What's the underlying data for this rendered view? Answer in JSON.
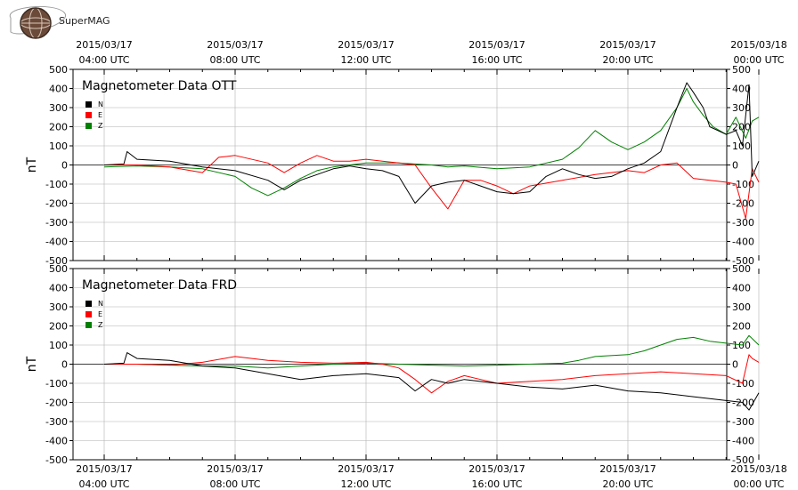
{
  "logo": {
    "text": "SuperMAG"
  },
  "colors": {
    "N": "#000000",
    "E": "#ff0000",
    "Z": "#008000",
    "grid": "#b0b0b0",
    "axis": "#000000"
  },
  "time_ticks": [
    {
      "date": "2015/03/17",
      "time": "04:00 UTC",
      "hour": 0
    },
    {
      "date": "2015/03/17",
      "time": "08:00 UTC",
      "hour": 4
    },
    {
      "date": "2015/03/17",
      "time": "12:00 UTC",
      "hour": 8
    },
    {
      "date": "2015/03/17",
      "time": "16:00 UTC",
      "hour": 12
    },
    {
      "date": "2015/03/17",
      "time": "20:00 UTC",
      "hour": 16
    },
    {
      "date": "2015/03/18",
      "time": "00:00 UTC",
      "hour": 20
    }
  ],
  "legend": [
    "N",
    "E",
    "Z"
  ],
  "chart_data": [
    {
      "type": "line",
      "title": "Magnetometer Data OTT",
      "ylabel": "nT",
      "xlabel": "",
      "xlim": [
        0,
        20
      ],
      "ylim": [
        -500,
        500
      ],
      "yticks": [
        -500,
        -400,
        -300,
        -200,
        -100,
        0,
        100,
        200,
        300,
        400,
        500
      ],
      "grid": true,
      "legend_position": "top-left",
      "series": [
        {
          "name": "N",
          "color": "#000000",
          "x": [
            0,
            0.6,
            0.7,
            1,
            2,
            3,
            4,
            5,
            5.5,
            6,
            6.5,
            7,
            7.5,
            8,
            8.5,
            9,
            9.5,
            10,
            10.5,
            11,
            11.5,
            12,
            12.5,
            13,
            13.5,
            14,
            14.5,
            15,
            15.5,
            16,
            16.5,
            17,
            17.5,
            17.8,
            18,
            18.3,
            18.5,
            19,
            19.3,
            19.5,
            19.7,
            19.8,
            20
          ],
          "y": [
            0,
            5,
            70,
            30,
            20,
            -10,
            -30,
            -80,
            -130,
            -80,
            -50,
            -20,
            -5,
            -20,
            -30,
            -60,
            -200,
            -110,
            -90,
            -80,
            -110,
            -140,
            -150,
            -140,
            -60,
            -20,
            -50,
            -70,
            -60,
            -20,
            10,
            70,
            300,
            430,
            380,
            300,
            200,
            160,
            180,
            100,
            420,
            -60,
            20
          ]
        },
        {
          "name": "E",
          "color": "#ff0000",
          "x": [
            0,
            1,
            2,
            3,
            3.5,
            4,
            5,
            5.5,
            6,
            6.5,
            7,
            7.5,
            8,
            8.5,
            9,
            9.5,
            10,
            10.5,
            11,
            11.5,
            12,
            12.5,
            13,
            14,
            15,
            16,
            16.5,
            17,
            17.5,
            18,
            18.5,
            19,
            19.3,
            19.6,
            19.8,
            20
          ],
          "y": [
            0,
            0,
            -10,
            -40,
            40,
            50,
            10,
            -40,
            10,
            50,
            20,
            20,
            30,
            20,
            10,
            0,
            -120,
            -230,
            -80,
            -80,
            -110,
            -150,
            -110,
            -80,
            -50,
            -30,
            -40,
            0,
            10,
            -70,
            -80,
            -90,
            -100,
            -280,
            -20,
            -90
          ]
        },
        {
          "name": "Z",
          "color": "#008000",
          "x": [
            0,
            1,
            2,
            3,
            4,
            4.5,
            5,
            5.5,
            6,
            6.5,
            7,
            7.5,
            8,
            9,
            10,
            10.5,
            11,
            12,
            13,
            14,
            14.5,
            15,
            15.5,
            16,
            16.5,
            17,
            17.5,
            17.8,
            18,
            18.3,
            18.6,
            19,
            19.3,
            19.6,
            19.8,
            20
          ],
          "y": [
            -10,
            -5,
            -10,
            -20,
            -60,
            -120,
            -160,
            -120,
            -70,
            -30,
            -10,
            0,
            10,
            10,
            0,
            -10,
            -5,
            -20,
            -10,
            30,
            90,
            180,
            120,
            80,
            120,
            180,
            300,
            400,
            330,
            260,
            200,
            160,
            250,
            140,
            230,
            250
          ]
        }
      ]
    },
    {
      "type": "line",
      "title": "Magnetometer Data FRD",
      "ylabel": "nT",
      "xlabel": "",
      "xlim": [
        0,
        20
      ],
      "ylim": [
        -500,
        500
      ],
      "yticks": [
        -500,
        -400,
        -300,
        -200,
        -100,
        0,
        100,
        200,
        300,
        400,
        500
      ],
      "grid": true,
      "legend_position": "top-left",
      "series": [
        {
          "name": "N",
          "color": "#000000",
          "x": [
            0,
            0.6,
            0.7,
            1,
            2,
            3,
            4,
            5,
            6,
            7,
            8,
            8.5,
            9,
            9.5,
            10,
            10.5,
            11,
            11.5,
            12,
            13,
            14,
            15,
            16,
            17,
            18,
            19,
            19.5,
            19.7,
            20
          ],
          "y": [
            0,
            5,
            60,
            30,
            20,
            -10,
            -20,
            -50,
            -80,
            -60,
            -50,
            -60,
            -70,
            -140,
            -80,
            -100,
            -80,
            -90,
            -100,
            -120,
            -130,
            -110,
            -140,
            -150,
            -170,
            -190,
            -200,
            -240,
            -150
          ]
        },
        {
          "name": "E",
          "color": "#ff0000",
          "x": [
            0,
            1,
            2,
            3,
            4,
            5,
            6,
            7,
            8,
            8.5,
            9,
            9.5,
            10,
            10.5,
            11,
            11.5,
            12,
            13,
            14,
            15,
            16,
            17,
            18,
            19,
            19.5,
            19.7,
            19.8,
            20
          ],
          "y": [
            0,
            0,
            -5,
            10,
            40,
            20,
            10,
            5,
            10,
            0,
            -20,
            -80,
            -150,
            -90,
            -60,
            -80,
            -100,
            -90,
            -80,
            -60,
            -50,
            -40,
            -50,
            -60,
            -100,
            50,
            30,
            10
          ]
        },
        {
          "name": "Z",
          "color": "#008000",
          "x": [
            0,
            1,
            2,
            3,
            4,
            5,
            6,
            7,
            8,
            9,
            10,
            11,
            12,
            13,
            14,
            14.5,
            15,
            16,
            16.5,
            17,
            17.5,
            18,
            18.5,
            19,
            19.5,
            19.7,
            20
          ],
          "y": [
            0,
            0,
            -5,
            -10,
            -10,
            -20,
            -10,
            0,
            5,
            0,
            -5,
            -10,
            -5,
            0,
            5,
            20,
            40,
            50,
            70,
            100,
            130,
            140,
            120,
            110,
            100,
            150,
            100
          ]
        }
      ]
    }
  ]
}
